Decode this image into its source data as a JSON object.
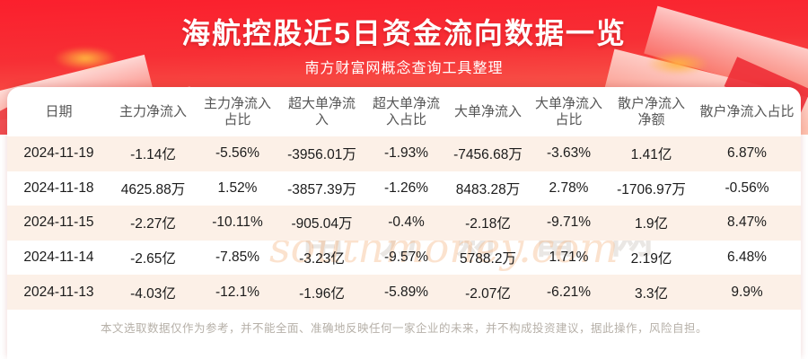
{
  "banner": {
    "title": "海航控股近5日资金流向数据一览",
    "subtitle": "南方财富网概念查询工具整理",
    "bg_top_color": "#fb1f2d",
    "bg_bottom_color": "#f98a6d"
  },
  "watermark": {
    "line1": "南方财富网",
    "line2": "southmoney.com"
  },
  "chart_data": {
    "type": "table",
    "title": "海航控股近5日资金流向数据一览",
    "columns": [
      "日期",
      "主力净流入",
      "主力净流入占比",
      "超大单净流入",
      "超大单净流入占比",
      "大单净流入",
      "大单净流入占比",
      "散户净流入净额",
      "散户净流入占比"
    ],
    "rows": [
      [
        "2024-11-19",
        "-1.14亿",
        "-5.56%",
        "-3956.01万",
        "-1.93%",
        "-7456.68万",
        "-3.63%",
        "1.41亿",
        "6.87%"
      ],
      [
        "2024-11-18",
        "4625.88万",
        "1.52%",
        "-3857.39万",
        "-1.26%",
        "8483.28万",
        "2.78%",
        "-1706.97万",
        "-0.56%"
      ],
      [
        "2024-11-15",
        "-2.27亿",
        "-10.11%",
        "-905.04万",
        "-0.4%",
        "-2.18亿",
        "-9.71%",
        "1.9亿",
        "8.47%"
      ],
      [
        "2024-11-14",
        "-2.65亿",
        "-7.85%",
        "-3.23亿",
        "-9.57%",
        "5788.2万",
        "1.71%",
        "2.19亿",
        "6.48%"
      ],
      [
        "2024-11-13",
        "-4.03亿",
        "-12.1%",
        "-1.96亿",
        "-5.89%",
        "-2.07亿",
        "-6.21%",
        "3.3亿",
        "9.9%"
      ]
    ],
    "row_alt_color": "#fcf0e7"
  },
  "footer": {
    "disclaimer": "本文选取数据仅作为参考，并不能全面、准确地反映任何一家企业的未来，并不构成投资建议，据此操作，风险自担。"
  }
}
